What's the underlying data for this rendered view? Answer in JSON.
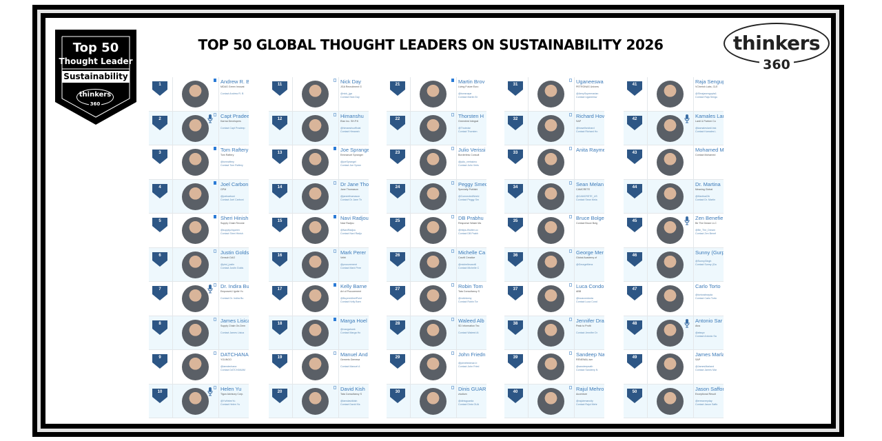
{
  "page": {
    "title": "TOP 50 GLOBAL THOUGHT LEADERS ON SUSTAINABILITY 2026"
  },
  "badge": {
    "line1": "Top 50",
    "line2": "Thought Leader",
    "category": "Sustainability",
    "logo_word": "thinkers",
    "logo_num": "360"
  },
  "logo": {
    "word": "thinkers",
    "num": "360"
  },
  "colors": {
    "rank_badge": "#2d5685",
    "name_link": "#3a79b8",
    "row_alt": "#eef8fd",
    "frame": "#000000"
  },
  "columns": [
    {
      "leaders": [
        {
          "rank": "1",
          "name": "Andrew R. Ba",
          "org": "MDAG Green Innovat",
          "handle": "",
          "contact": "Contact Andrew R. B",
          "mark": "filled",
          "mic": false
        },
        {
          "rank": "2",
          "name": "Capt Pradeep",
          "org": "Karma Developers",
          "handle": "",
          "contact": "Contact Capt Pradeep",
          "mark": "outline",
          "mic": true
        },
        {
          "rank": "3",
          "name": "Tom Raftery",
          "org": "Tom Raftery",
          "handle": "@tomraftery",
          "contact": "Contact Tom Raftery",
          "mark": "filled",
          "mic": false
        },
        {
          "rank": "4",
          "name": "Joel Carboni",
          "org": "GPM",
          "handle": "@joelcarboni",
          "contact": "Contact Joel Carboni",
          "mark": "filled",
          "mic": false
        },
        {
          "rank": "5",
          "name": "Sheri Hinish",
          "org": "Supply Chain Revolut",
          "handle": "@supplychqueen",
          "contact": "Contact Sheri Hinish",
          "mark": "filled",
          "mic": false
        },
        {
          "rank": "6",
          "name": "Justin Goldst",
          "org": "Gensch DAO",
          "handle": "@phd_justin",
          "contact": "Contact Justin Golds",
          "mark": "outline",
          "mic": false
        },
        {
          "rank": "7",
          "name": "Dr. Indira Bu",
          "org": "EmpowerU Ignite Yo",
          "handle": "",
          "contact": "Contact Dr. Indira Bu",
          "mark": "outline",
          "mic": true
        },
        {
          "rank": "8",
          "name": "James Lisica",
          "org": "Supply Chain On-Dem",
          "handle": "",
          "contact": "Contact James Lisica",
          "mark": "outline",
          "mic": false
        },
        {
          "rank": "9",
          "name": "DATCHANAM",
          "org": "YOUNGO",
          "handle": "@iamdechana",
          "contact": "Contact DATCHANAM",
          "mark": "outline",
          "mic": false
        },
        {
          "rank": "10",
          "name": "Helen Yu",
          "org": "Tigon Advisory Corp.",
          "handle": "@YuHelenYu",
          "contact": "Contact Helen Yu",
          "mark": "outline",
          "mic": true
        }
      ]
    },
    {
      "leaders": [
        {
          "rank": "11",
          "name": "Nick Day",
          "org": "JGA Recruitment G",
          "handle": "@nick_jga",
          "contact": "Contact Nick Day",
          "mark": "outline",
          "mic": false
        },
        {
          "rank": "12",
          "name": "Himanshu",
          "org": "Elan Inc. SH.P.K",
          "handle": "@himanshuofficial",
          "contact": "Contact Himansh",
          "mark": "outline",
          "mic": false
        },
        {
          "rank": "13",
          "name": "Joe Sprange",
          "org": "Emmanuel Spranger",
          "handle": "@joeSprangel",
          "contact": "Contact Joe Spran",
          "mark": "filled",
          "mic": false
        },
        {
          "rank": "14",
          "name": "Dr Jane Tho",
          "org": "Jane Thomason",
          "handle": "@janeethomason",
          "contact": "Contact Dr Jane Th",
          "mark": "outline",
          "mic": false
        },
        {
          "rank": "15",
          "name": "Navi Radjou",
          "org": "Navi Radjou",
          "handle": "@NaviRadjou",
          "contact": "Contact Navi Radjo",
          "mark": "filled",
          "mic": false
        },
        {
          "rank": "16",
          "name": "Mark Perer",
          "org": "Veltri",
          "handle": "@procurement",
          "contact": "Contact Mark Pere",
          "mark": "outline",
          "mic": false
        },
        {
          "rank": "17",
          "name": "Kelly Barne",
          "org": "Art of Procurement",
          "handle": "@BuyersMeetPoint",
          "contact": "Contact Kelly Barn",
          "mark": "filled",
          "mic": false
        },
        {
          "rank": "18",
          "name": "Marga Hoel",
          "org": "",
          "handle": "@margahoek",
          "contact": "Contact Marga Ho",
          "mark": "filled",
          "mic": false
        },
        {
          "rank": "19",
          "name": "Manuel And",
          "org": "Gemeris Gemesa",
          "handle": "",
          "contact": "Contact Manuel A",
          "mark": "outline",
          "mic": false
        },
        {
          "rank": "20",
          "name": "David Kish",
          "org": "Tata Consultancy S",
          "handle": "@iamdavidkish",
          "contact": "Contact David Kis",
          "mark": "outline",
          "mic": false
        }
      ]
    },
    {
      "leaders": [
        {
          "rank": "21",
          "name": "Martin Brov",
          "org": "Living Future Euro",
          "handle": "@bonsnape",
          "contact": "Contact Martin Br",
          "mark": "filled",
          "mic": false
        },
        {
          "rank": "22",
          "name": "Thorsten H",
          "org": "Greenbird Integrat",
          "handle": "@Thoiedar",
          "contact": "Contact Thorsten",
          "mark": "outline",
          "mic": false
        },
        {
          "rank": "23",
          "name": "Julio Verissi",
          "org": "Borderless Consult",
          "handle": "@julio_verissimo",
          "contact": "Contact Julio Veris",
          "mark": "outline",
          "mic": false
        },
        {
          "rank": "24",
          "name": "Peggy Smed",
          "org": "Specialty Publishi",
          "handle": "@ConnectedWorld",
          "contact": "Contact Peggy Sm",
          "mark": "outline",
          "mic": false
        },
        {
          "rank": "25",
          "name": "DB Prabhu",
          "org": "Response Waste Ma",
          "handle": "@https://twitter.co",
          "contact": "Contact DB Prabh",
          "mark": "outline",
          "mic": false
        },
        {
          "rank": "26",
          "name": "Michelle Ca",
          "org": "Carvill Creative",
          "handle": "@michellecarvill",
          "contact": "Contact Michelle C",
          "mark": "outline",
          "mic": false
        },
        {
          "rank": "27",
          "name": "Robin Tom",
          "org": "Tata Consultancy S",
          "handle": "@robintomy",
          "contact": "Contact Robin Tor",
          "mark": "outline",
          "mic": false
        },
        {
          "rank": "28",
          "name": "Waleed Alb",
          "org": "SD Information Tec",
          "handle": "",
          "contact": "Contact Waleed Al",
          "mark": "outline",
          "mic": false
        },
        {
          "rank": "29",
          "name": "John Friedn",
          "org": "",
          "handle": "@johnfriedman.b",
          "contact": "Contact John Fried",
          "mark": "outline",
          "mic": false
        },
        {
          "rank": "30",
          "name": "Dinis GUAR",
          "org": "ztudium",
          "handle": "@dinisguarda",
          "contact": "Contact Dinis GUA",
          "mark": "outline",
          "mic": false
        }
      ]
    },
    {
      "leaders": [
        {
          "rank": "31",
          "name": "Uganeeswa",
          "org": "PETRONAS Univers",
          "handle": "@AenySupermarian",
          "contact": "Contact Uganeesw",
          "mark": "outline",
          "mic": false
        },
        {
          "rank": "32",
          "name": "Richard Hov",
          "org": "SAP",
          "handle": "@howellsrichard",
          "contact": "Contact Richard Ho",
          "mark": "outline",
          "mic": false
        },
        {
          "rank": "33",
          "name": "Anita Rayme",
          "org": "",
          "handle": "",
          "contact": "",
          "mark": "outline",
          "mic": false
        },
        {
          "rank": "34",
          "name": "Sean Melan",
          "org": "CAMCRETE",
          "handle": "@CAMCRETE_US",
          "contact": "Contact Sean Mela",
          "mark": "outline",
          "mic": false
        },
        {
          "rank": "35",
          "name": "Bruce Bolge",
          "org": "Contact Bruce Bolg",
          "handle": "",
          "contact": "",
          "mark": "outline",
          "mic": false
        },
        {
          "rank": "36",
          "name": "George Mer",
          "org": "Global Academy of",
          "handle": "@GeorgeMenz",
          "contact": "",
          "mark": "outline",
          "mic": false
        },
        {
          "rank": "37",
          "name": "Luca Condo",
          "org": "ABB",
          "handle": "@lucacondosta",
          "contact": "Contact Luca Cond",
          "mark": "outline",
          "mic": false
        },
        {
          "rank": "38",
          "name": "Jennifer Dra",
          "org": "Peak to Profit",
          "handle": "",
          "contact": "Contact Jennifer Dr",
          "mark": "outline",
          "mic": false
        },
        {
          "rank": "39",
          "name": "Sandeep Na",
          "org": "RENEWAL.ism",
          "handle": "@sandeepnath",
          "contact": "Contact Sandeep N",
          "mark": "outline",
          "mic": false
        },
        {
          "rank": "40",
          "name": "Rajul Mehro",
          "org": "Accenture",
          "handle": "@rajulemancity",
          "contact": "Contact Rajul Mehr",
          "mark": "outline",
          "mic": false
        }
      ]
    },
    {
      "leaders": [
        {
          "rank": "41",
          "name": "Raja Sengup",
          "org": "VCherish Labs, CLE",
          "handle": "@Shrajasengupta1",
          "contact": "Contact Raja Sengu",
          "mark": "none",
          "mic": false
        },
        {
          "rank": "42",
          "name": "Kamales Lar",
          "org": "Lardi & Partner Co",
          "handle": "@kamaleslardi.bsk",
          "contact": "Contact Kamales L",
          "mark": "none",
          "mic": true
        },
        {
          "rank": "43",
          "name": "Mohamed M",
          "org": "Contact Mohamed",
          "handle": "",
          "contact": "",
          "mark": "none",
          "mic": false
        },
        {
          "rank": "44",
          "name": "Dr. Martina",
          "org": "Meaning Global",
          "handle": "@MartinaClb",
          "contact": "Contact Dr. Martin",
          "mark": "none",
          "mic": false
        },
        {
          "rank": "45",
          "name": "Zen Benefie",
          "org": "Be The Dream LLC",
          "handle": "@Be_The_Dream",
          "contact": "Contact Zen Benef",
          "mark": "none",
          "mic": true
        },
        {
          "rank": "46",
          "name": "Sunny (Gurp",
          "org": "",
          "handle": "@SunnyGingh",
          "contact": "Contact Sunny (Ga",
          "mark": "none",
          "mic": false
        },
        {
          "rank": "47",
          "name": "Carlo Torto",
          "org": "",
          "handle": "@tortorabrayda",
          "contact": "Contact Carlo Torto",
          "mark": "none",
          "mic": false
        },
        {
          "rank": "48",
          "name": "Antonio Sar",
          "org": "Atos",
          "handle": "@alssyz",
          "contact": "Contact Antonio Sa",
          "mark": "none",
          "mic": true
        },
        {
          "rank": "49",
          "name": "James Marla",
          "org": "SAP",
          "handle": "@JamesMarland",
          "contact": "Contact James Mar",
          "mark": "none",
          "mic": false
        },
        {
          "rank": "50",
          "name": "Jason Saffor",
          "org": "Exceptional Result",
          "handle": "@erreaveryday",
          "contact": "Contact Jason Saffo",
          "mark": "none",
          "mic": false
        }
      ]
    }
  ]
}
